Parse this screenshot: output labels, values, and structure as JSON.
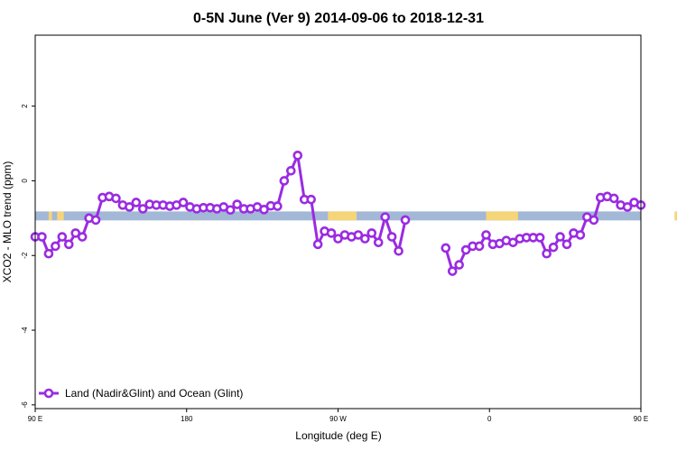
{
  "chart_data": {
    "type": "line",
    "title": "0-5N June (Ver 9)   2014-09-06 to 2018-12-31",
    "xlabel": "Longitude (deg E)",
    "ylabel": "XCO2 - MLO trend (ppm)",
    "xlim": [
      90,
      450
    ],
    "ylim": [
      -6.1,
      3.9
    ],
    "x_ticks": [
      {
        "value": 90,
        "label": "90 E"
      },
      {
        "value": 180,
        "label": "180"
      },
      {
        "value": 270,
        "label": "90 W"
      },
      {
        "value": 360,
        "label": "0"
      },
      {
        "value": 450,
        "label": "90 E"
      },
      {
        "value": 540,
        "label": "180"
      }
    ],
    "x_ticks_note": "",
    "y_ticks": [
      -6,
      -4,
      -2,
      0,
      2
    ],
    "grid": false,
    "legend_position": "bottom-left",
    "colors": {
      "series": "#9a2be2",
      "ocean_band": "#a3b7d6",
      "land_band": "#f5d57a"
    },
    "band": {
      "y_range": [
        -1.06,
        -0.82
      ],
      "land_segments": [
        [
          98,
          100
        ],
        [
          103,
          107
        ],
        [
          264,
          281
        ],
        [
          358,
          377
        ],
        [
          470,
          475
        ],
        [
          481,
          485
        ]
      ]
    },
    "series": [
      {
        "name": "Land (Nadir&Glint) and Ocean (Glint)",
        "points": [
          [
            90,
            -1.5
          ],
          [
            94,
            -1.5
          ],
          [
            98,
            -1.95
          ],
          [
            102,
            -1.75
          ],
          [
            106,
            -1.5
          ],
          [
            110,
            -1.7
          ],
          [
            114,
            -1.4
          ],
          [
            118,
            -1.5
          ],
          [
            122,
            -1.0
          ],
          [
            126,
            -1.05
          ],
          [
            130,
            -0.45
          ],
          [
            134,
            -0.42
          ],
          [
            138,
            -0.47
          ],
          [
            142,
            -0.65
          ],
          [
            146,
            -0.7
          ],
          [
            150,
            -0.58
          ],
          [
            154,
            -0.75
          ],
          [
            158,
            -0.63
          ],
          [
            162,
            -0.65
          ],
          [
            166,
            -0.65
          ],
          [
            170,
            -0.68
          ],
          [
            174,
            -0.65
          ],
          [
            178,
            -0.58
          ],
          [
            182,
            -0.7
          ],
          [
            186,
            -0.75
          ],
          [
            190,
            -0.72
          ],
          [
            194,
            -0.72
          ],
          [
            198,
            -0.75
          ],
          [
            202,
            -0.7
          ],
          [
            206,
            -0.78
          ],
          [
            210,
            -0.63
          ],
          [
            214,
            -0.75
          ],
          [
            218,
            -0.75
          ],
          [
            222,
            -0.7
          ],
          [
            226,
            -0.77
          ],
          [
            230,
            -0.67
          ],
          [
            234,
            -0.68
          ],
          [
            238,
            0.0
          ],
          [
            242,
            0.27
          ],
          [
            246,
            0.68
          ],
          [
            250,
            -0.5
          ],
          [
            254,
            -0.5
          ],
          [
            258,
            -1.7
          ],
          [
            262,
            -1.35
          ],
          [
            266,
            -1.4
          ],
          [
            270,
            -1.55
          ],
          [
            274,
            -1.45
          ],
          [
            278,
            -1.5
          ],
          [
            282,
            -1.45
          ],
          [
            286,
            -1.55
          ],
          [
            290,
            -1.4
          ],
          [
            294,
            -1.65
          ],
          [
            298,
            -0.97
          ],
          [
            302,
            -1.5
          ],
          [
            306,
            -1.88
          ],
          [
            310,
            -1.05
          ],
          null,
          [
            334,
            -1.8
          ],
          [
            338,
            -2.42
          ],
          [
            342,
            -2.25
          ],
          [
            346,
            -1.85
          ],
          [
            350,
            -1.75
          ],
          [
            354,
            -1.75
          ],
          [
            358,
            -1.45
          ],
          [
            362,
            -1.7
          ],
          [
            366,
            -1.68
          ],
          [
            370,
            -1.6
          ],
          [
            374,
            -1.65
          ],
          [
            378,
            -1.55
          ],
          [
            382,
            -1.52
          ],
          [
            386,
            -1.52
          ],
          [
            390,
            -1.52
          ],
          [
            394,
            -1.95
          ],
          [
            398,
            -1.78
          ],
          [
            402,
            -1.5
          ],
          [
            406,
            -1.7
          ],
          [
            410,
            -1.4
          ],
          [
            414,
            -1.45
          ],
          [
            418,
            -0.97
          ],
          [
            422,
            -1.05
          ],
          [
            426,
            -0.45
          ],
          [
            430,
            -0.42
          ],
          [
            434,
            -0.47
          ],
          [
            438,
            -0.65
          ],
          [
            442,
            -0.7
          ],
          [
            446,
            -0.58
          ],
          [
            450,
            -0.65
          ]
        ]
      }
    ]
  }
}
